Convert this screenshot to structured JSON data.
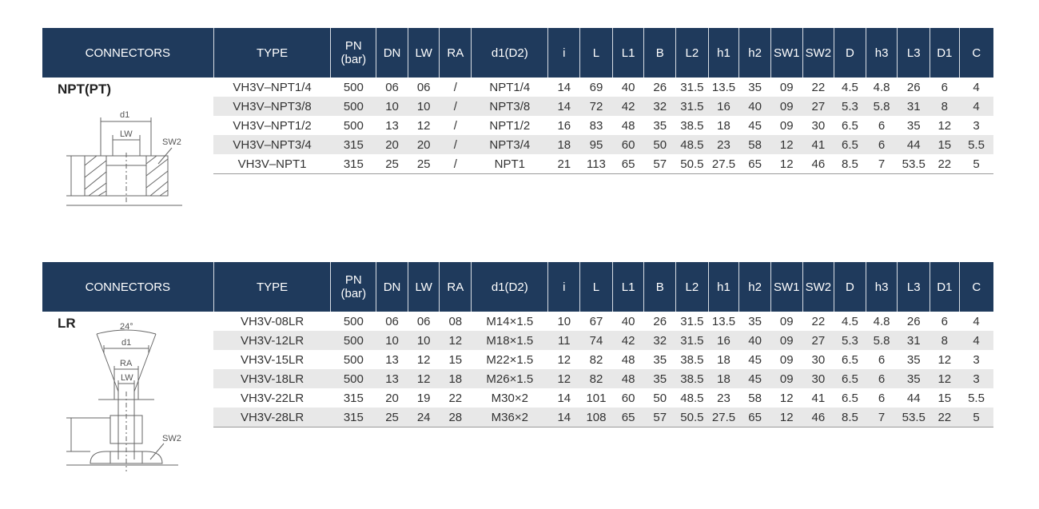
{
  "tables": [
    {
      "header": {
        "connectors": "CONNECTORS",
        "type": "TYPE",
        "pn_line1": "PN",
        "pn_line2": "(bar)",
        "cols": [
          "DN",
          "LW",
          "RA",
          "d1(D2)",
          "i",
          "L",
          "L1",
          "B",
          "L2",
          "h1",
          "h2",
          "SW1",
          "SW2",
          "D",
          "h3",
          "L3",
          "D1",
          "C"
        ]
      },
      "diagram": {
        "title": "NPT(PT)",
        "labels": {
          "d1": "d1",
          "lw": "LW",
          "sw2": "SW2"
        }
      },
      "rows": [
        [
          "VH3V–NPT1/4",
          "500",
          "06",
          "06",
          "/",
          "NPT1/4",
          "14",
          "69",
          "40",
          "26",
          "31.5",
          "13.5",
          "35",
          "09",
          "22",
          "4.5",
          "4.8",
          "26",
          "6",
          "4"
        ],
        [
          "VH3V–NPT3/8",
          "500",
          "10",
          "10",
          "/",
          "NPT3/8",
          "14",
          "72",
          "42",
          "32",
          "31.5",
          "16",
          "40",
          "09",
          "27",
          "5.3",
          "5.8",
          "31",
          "8",
          "4"
        ],
        [
          "VH3V–NPT1/2",
          "500",
          "13",
          "12",
          "/",
          "NPT1/2",
          "16",
          "83",
          "48",
          "35",
          "38.5",
          "18",
          "45",
          "09",
          "30",
          "6.5",
          "6",
          "35",
          "12",
          "3"
        ],
        [
          "VH3V–NPT3/4",
          "315",
          "20",
          "20",
          "/",
          "NPT3/4",
          "18",
          "95",
          "60",
          "50",
          "48.5",
          "23",
          "58",
          "12",
          "41",
          "6.5",
          "6",
          "44",
          "15",
          "5.5"
        ],
        [
          "VH3V–NPT1",
          "315",
          "25",
          "25",
          "/",
          "NPT1",
          "21",
          "113",
          "65",
          "57",
          "50.5",
          "27.5",
          "65",
          "12",
          "46",
          "8.5",
          "7",
          "53.5",
          "22",
          "5"
        ]
      ]
    },
    {
      "header": {
        "connectors": "CONNECTORS",
        "type": "TYPE",
        "pn_line1": "PN",
        "pn_line2": "(bar)",
        "cols": [
          "DN",
          "LW",
          "RA",
          "d1(D2)",
          "i",
          "L",
          "L1",
          "B",
          "L2",
          "h1",
          "h2",
          "SW1",
          "SW2",
          "D",
          "h3",
          "L3",
          "D1",
          "C"
        ]
      },
      "diagram": {
        "title": "LR",
        "labels": {
          "angle": "24°",
          "d1": "d1",
          "ra": "RA",
          "lw": "LW",
          "sw2": "SW2"
        }
      },
      "rows": [
        [
          "VH3V-08LR",
          "500",
          "06",
          "06",
          "08",
          "M14×1.5",
          "10",
          "67",
          "40",
          "26",
          "31.5",
          "13.5",
          "35",
          "09",
          "22",
          "4.5",
          "4.8",
          "26",
          "6",
          "4"
        ],
        [
          "VH3V-12LR",
          "500",
          "10",
          "10",
          "12",
          "M18×1.5",
          "11",
          "74",
          "42",
          "32",
          "31.5",
          "16",
          "40",
          "09",
          "27",
          "5.3",
          "5.8",
          "31",
          "8",
          "4"
        ],
        [
          "VH3V-15LR",
          "500",
          "13",
          "12",
          "15",
          "M22×1.5",
          "12",
          "82",
          "48",
          "35",
          "38.5",
          "18",
          "45",
          "09",
          "30",
          "6.5",
          "6",
          "35",
          "12",
          "3"
        ],
        [
          "VH3V-18LR",
          "500",
          "13",
          "12",
          "18",
          "M26×1.5",
          "12",
          "82",
          "48",
          "35",
          "38.5",
          "18",
          "45",
          "09",
          "30",
          "6.5",
          "6",
          "35",
          "12",
          "3"
        ],
        [
          "VH3V-22LR",
          "315",
          "20",
          "19",
          "22",
          "M30×2",
          "14",
          "101",
          "60",
          "50",
          "48.5",
          "23",
          "58",
          "12",
          "41",
          "6.5",
          "6",
          "44",
          "15",
          "5.5"
        ],
        [
          "VH3V-28LR",
          "315",
          "25",
          "24",
          "28",
          "M36×2",
          "14",
          "108",
          "65",
          "57",
          "50.5",
          "27.5",
          "65",
          "12",
          "46",
          "8.5",
          "7",
          "53.5",
          "22",
          "5"
        ]
      ]
    }
  ]
}
